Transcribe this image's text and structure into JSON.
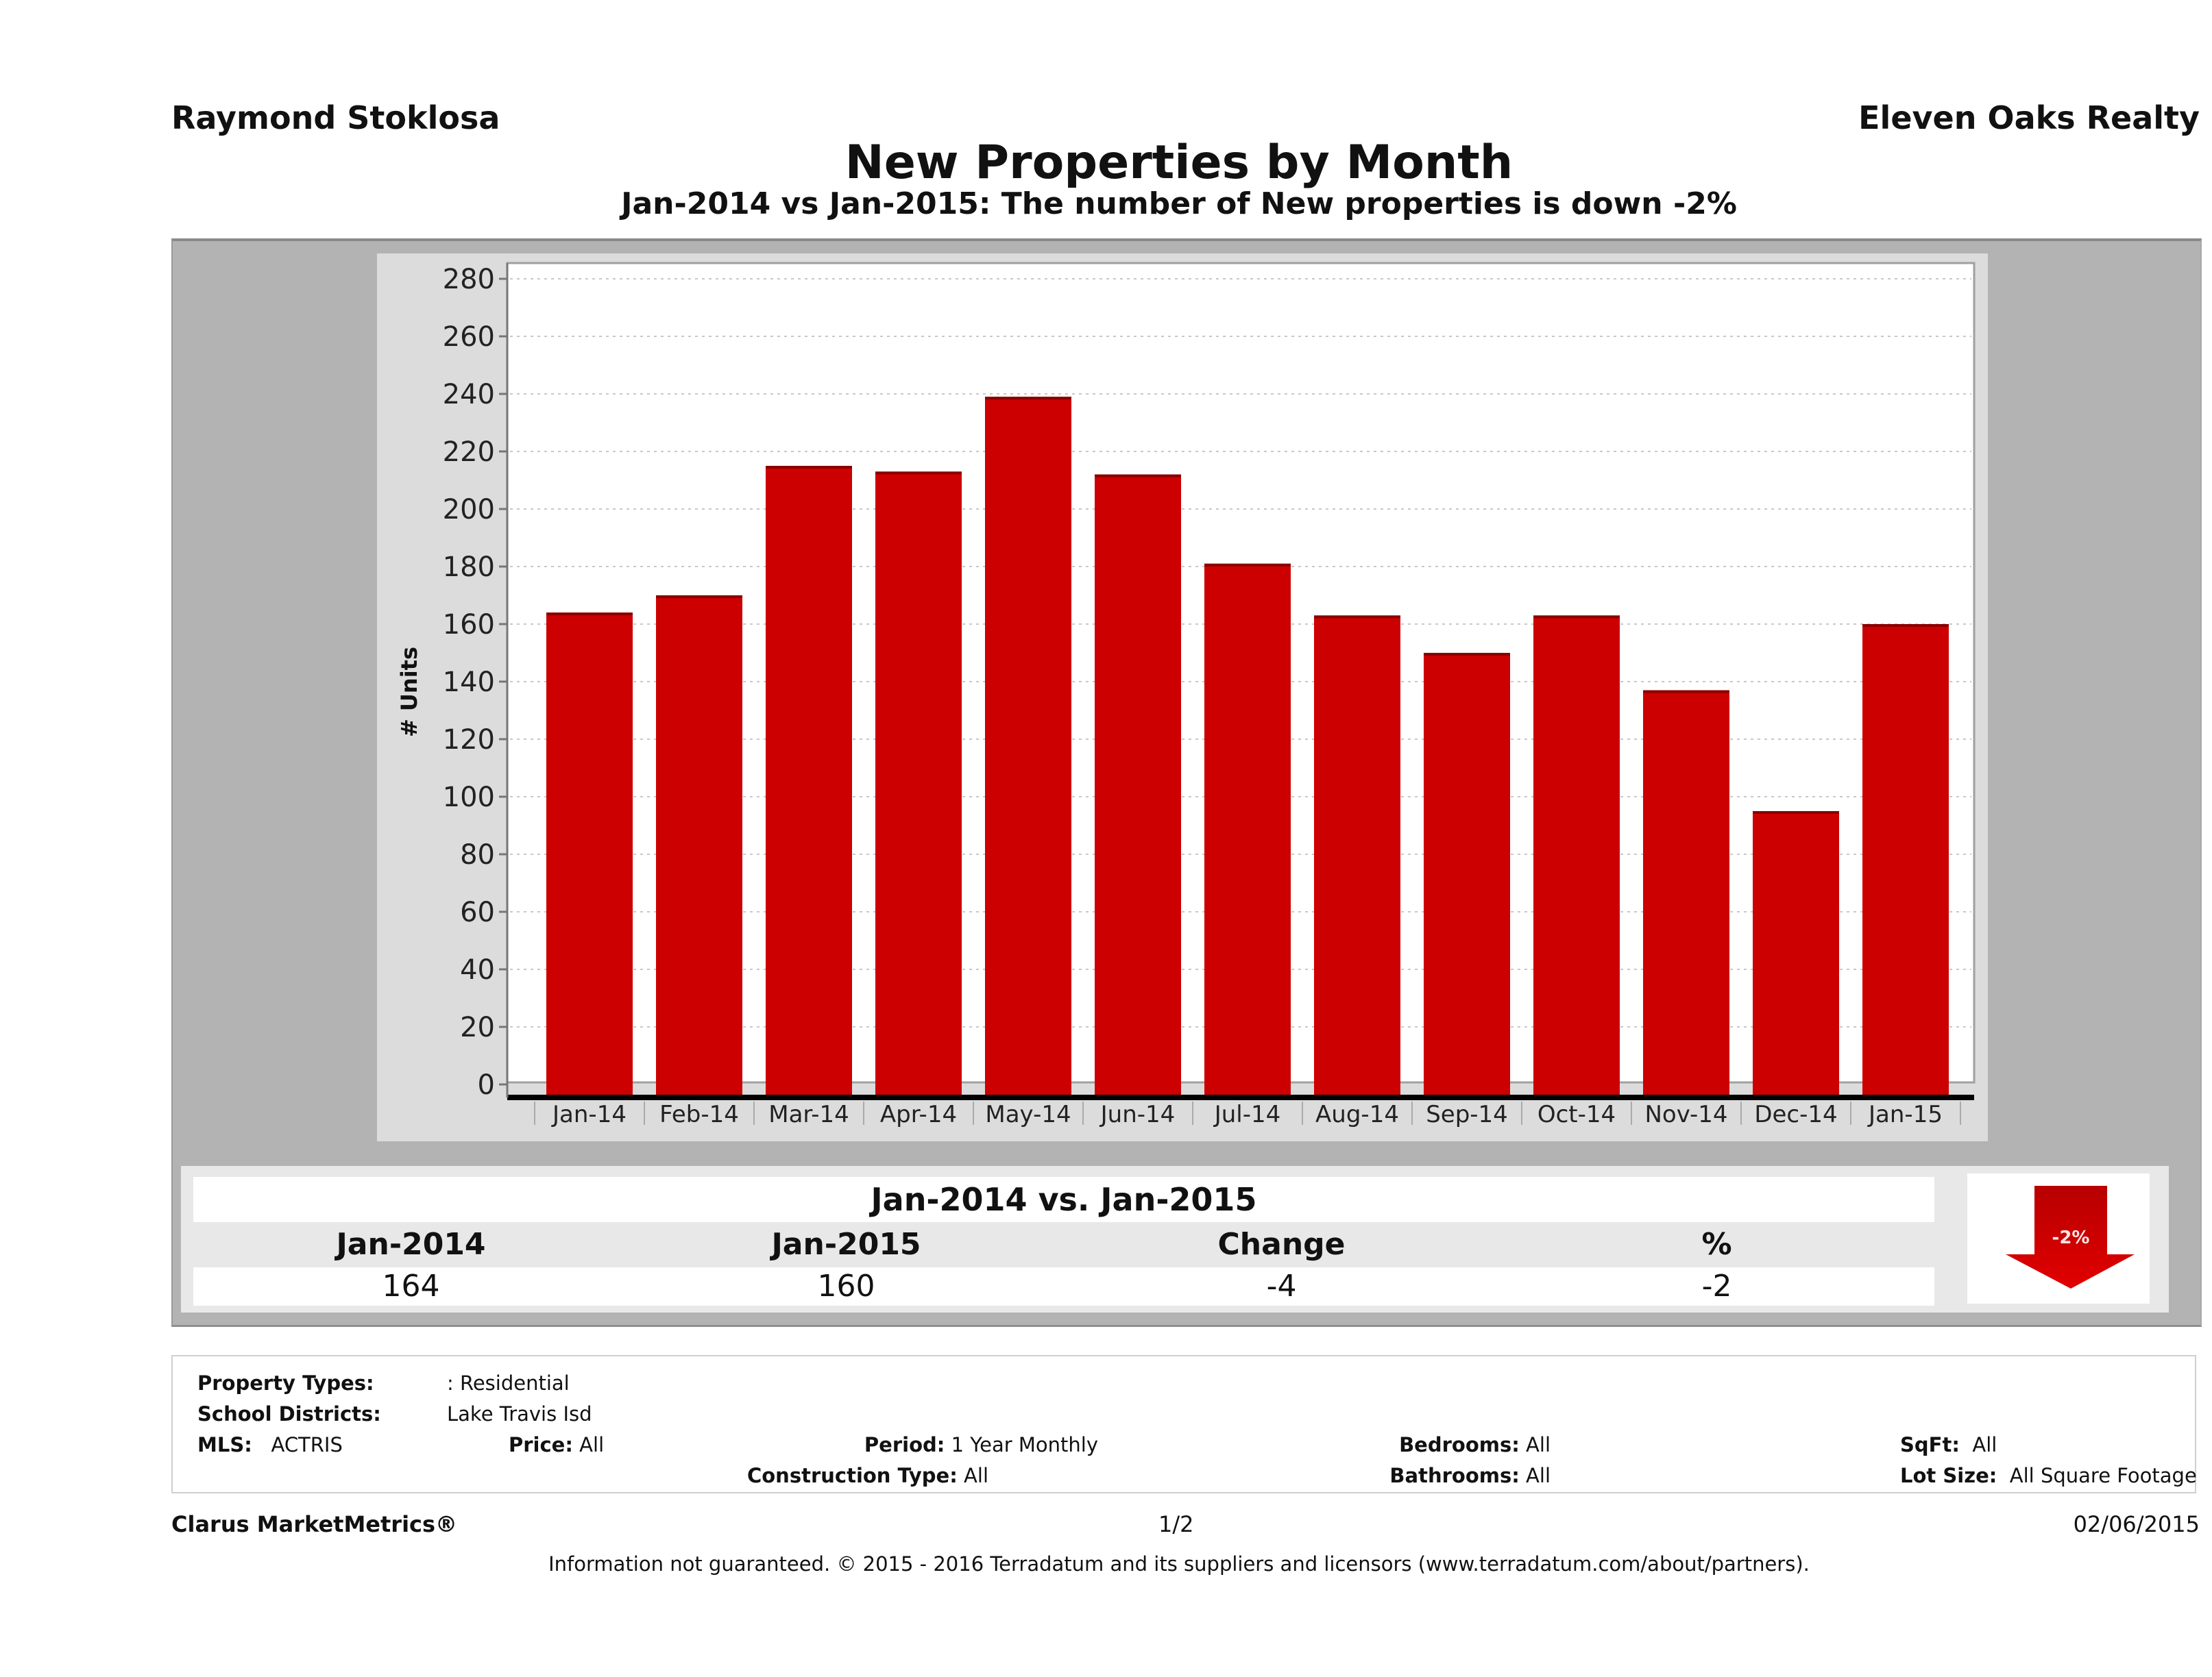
{
  "header": {
    "agent_name": "Raymond Stoklosa",
    "company": "Eleven Oaks Realty",
    "title": "New Properties by Month",
    "subtitle": "Jan-2014 vs Jan-2015: The number of New  properties is down -2%"
  },
  "chart_data": {
    "type": "bar",
    "title": "New Properties by Month",
    "xlabel": "",
    "ylabel": "# Units",
    "ylim": [
      0,
      280
    ],
    "yticks": [
      0,
      20,
      40,
      60,
      80,
      100,
      120,
      140,
      160,
      180,
      200,
      220,
      240,
      260,
      280
    ],
    "grid": true,
    "legend": "none",
    "categories": [
      "Jan-14",
      "Feb-14",
      "Mar-14",
      "Apr-14",
      "May-14",
      "Jun-14",
      "Jul-14",
      "Aug-14",
      "Sep-14",
      "Oct-14",
      "Nov-14",
      "Dec-14",
      "Jan-15"
    ],
    "series": [
      {
        "name": "New Properties",
        "color": "#cc0000",
        "values": [
          164,
          170,
          215,
          213,
          239,
          212,
          181,
          163,
          150,
          163,
          137,
          95,
          160
        ]
      }
    ]
  },
  "comparison": {
    "heading": "Jan-2014 vs. Jan-2015",
    "columns": [
      "Jan-2014",
      "Jan-2015",
      "Change",
      "%"
    ],
    "values": [
      "164",
      "160",
      "-4",
      "-2"
    ],
    "badge": {
      "label": "-2%",
      "direction": "down",
      "color": "#cc0000"
    }
  },
  "filters": {
    "property_types": {
      "label": "Property Types:",
      "value": ": Residential"
    },
    "school_districts": {
      "label": "School Districts:",
      "value": "Lake Travis Isd"
    },
    "mls": {
      "label": "MLS:",
      "value": "ACTRIS"
    },
    "price": {
      "label": "Price:",
      "value": "All"
    },
    "period": {
      "label": "Period:",
      "value": "1 Year Monthly"
    },
    "construction_type": {
      "label": "Construction Type:",
      "value": "All"
    },
    "bedrooms": {
      "label": "Bedrooms:",
      "value": "All"
    },
    "bathrooms": {
      "label": "Bathrooms:",
      "value": "All"
    },
    "sqft": {
      "label": "SqFt:",
      "value": "All"
    },
    "lot_size": {
      "label": "Lot Size:",
      "value": "All Square Footage"
    }
  },
  "footer": {
    "brand": "Clarus MarketMetrics®",
    "page": "1/2",
    "date": "02/06/2015",
    "disclaimer": "Information not guaranteed. © 2015 - 2016 Terradatum and its suppliers and licensors (www.terradatum.com/about/partners)."
  }
}
